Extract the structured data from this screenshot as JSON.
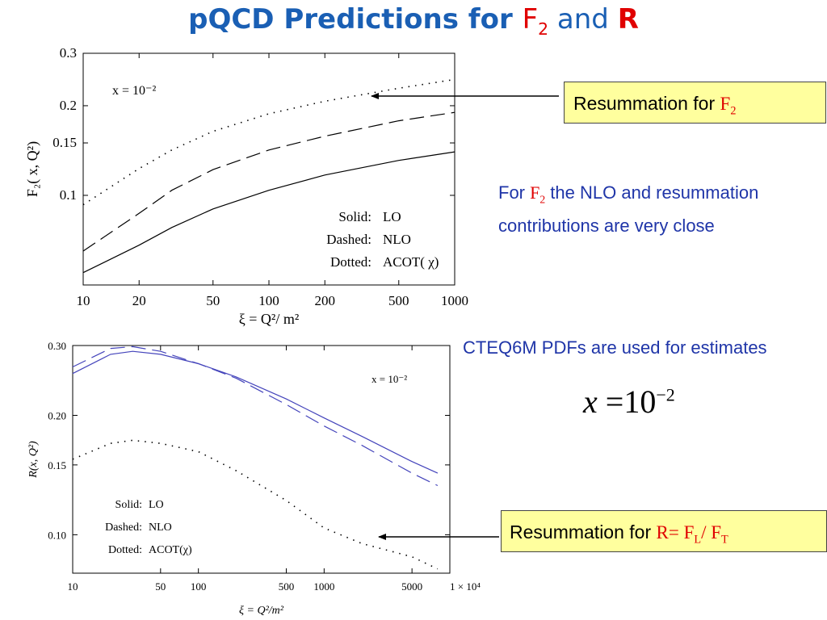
{
  "title": {
    "prefix": "pQCD Predictions for ",
    "f2_base": "F",
    "f2_sub": "2",
    "and": " and ",
    "r": "R"
  },
  "callout_top": {
    "text": "Resummation for ",
    "f_base": "F",
    "f_sub": "2"
  },
  "callout_bottom": {
    "text": "Resummation for ",
    "r_part": "R= F",
    "l_sub": "L",
    "slash": "/ F",
    "t_sub": "T"
  },
  "note_f2": {
    "prefix": "For ",
    "f_base": "F",
    "f_sub": "2",
    "line1": "  the NLO and resummation",
    "line2": "contributions  are  very  close"
  },
  "note_cteq": "CTEQ6M PDFs are used for estimates",
  "equation": {
    "var": "x",
    "eq": " =10",
    "exp": "−2"
  },
  "colors": {
    "title": "#1a5fb4",
    "red": "#e00000",
    "note": "#1f35a8",
    "callout_bg": "#ffff9e",
    "curve_blue": "#4444bb"
  },
  "chart_data": [
    {
      "type": "line",
      "xscale": "log",
      "yscale": "log",
      "xlim": [
        10,
        1000
      ],
      "ylim": [
        0.05,
        0.3
      ],
      "xticks": [
        "10",
        "20",
        "50",
        "100",
        "200",
        "500",
        "1000"
      ],
      "yticks": [
        "0.1",
        "0.15",
        "0.2",
        "0.3"
      ],
      "xlabel": "ξ = Q²/ m²",
      "ylabel": "F₂( x, Q²)",
      "annotation": "x = 10⁻²",
      "legend": [
        {
          "style": "Solid:",
          "label": "LO"
        },
        {
          "style": "Dashed:",
          "label": "NLO"
        },
        {
          "style": "Dotted:",
          "label": "ACOT( χ)"
        }
      ],
      "series": [
        {
          "name": "LO",
          "dash": "solid",
          "x": [
            10,
            20,
            30,
            50,
            100,
            200,
            500,
            1000
          ],
          "y": [
            0.055,
            0.068,
            0.078,
            0.09,
            0.104,
            0.117,
            0.131,
            0.14
          ]
        },
        {
          "name": "NLO",
          "dash": "dashed",
          "x": [
            10,
            20,
            30,
            50,
            100,
            200,
            500,
            1000
          ],
          "y": [
            0.065,
            0.087,
            0.104,
            0.122,
            0.142,
            0.158,
            0.178,
            0.19
          ]
        },
        {
          "name": "ACOT( χ)",
          "dash": "dotted",
          "x": [
            10,
            20,
            30,
            50,
            100,
            200,
            500,
            1000
          ],
          "y": [
            0.093,
            0.123,
            0.142,
            0.164,
            0.188,
            0.207,
            0.229,
            0.245
          ]
        }
      ]
    },
    {
      "type": "line",
      "xscale": "log",
      "yscale": "log",
      "xlim": [
        10,
        10000
      ],
      "ylim": [
        0.08,
        0.3
      ],
      "xticks": [
        "10",
        "50",
        "100",
        "500",
        "1000",
        "5000",
        "1 × 10⁴"
      ],
      "yticks": [
        "0.10",
        "0.15",
        "0.20",
        "0.30"
      ],
      "xlabel": "ξ = Q²/m²",
      "ylabel": "R(x, Q²)",
      "annotation": "x = 10⁻²",
      "legend": [
        {
          "style": "Solid:",
          "label": "LO"
        },
        {
          "style": "Dashed:",
          "label": "NLO"
        },
        {
          "style": "Dotted:",
          "label": "ACOT(χ)"
        }
      ],
      "series": [
        {
          "name": "LO",
          "dash": "solid",
          "x": [
            10,
            20,
            30,
            50,
            100,
            200,
            500,
            1000,
            2000,
            5000,
            8000
          ],
          "y": [
            0.255,
            0.285,
            0.29,
            0.285,
            0.27,
            0.25,
            0.22,
            0.197,
            0.177,
            0.153,
            0.143
          ]
        },
        {
          "name": "NLO",
          "dash": "dashed",
          "x": [
            10,
            20,
            30,
            50,
            100,
            200,
            500,
            1000,
            2000,
            5000,
            8000
          ],
          "y": [
            0.265,
            0.295,
            0.298,
            0.29,
            0.27,
            0.248,
            0.213,
            0.188,
            0.168,
            0.143,
            0.133
          ]
        },
        {
          "name": "ACOT(χ)",
          "dash": "dotted",
          "x": [
            10,
            20,
            30,
            50,
            100,
            200,
            500,
            1000,
            2000,
            5000,
            8000
          ],
          "y": [
            0.155,
            0.17,
            0.173,
            0.17,
            0.162,
            0.145,
            0.122,
            0.104,
            0.095,
            0.088,
            0.082
          ]
        }
      ]
    }
  ]
}
